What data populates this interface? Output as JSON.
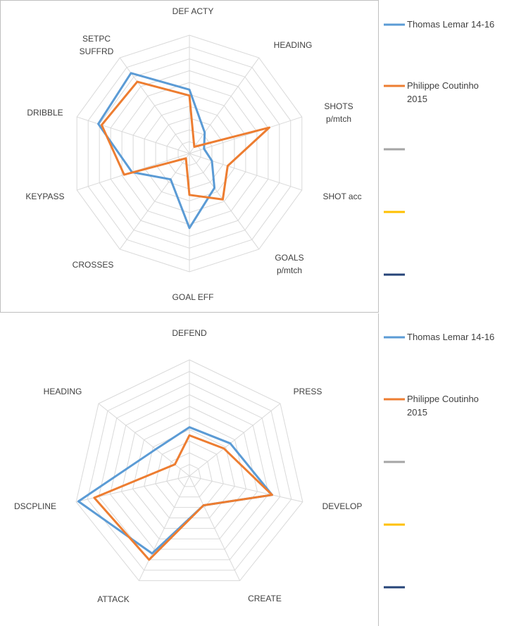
{
  "chart_data": [
    {
      "type": "radar",
      "title": "",
      "rmax": 10,
      "rings": 10,
      "axes": [
        "DEF ACTY",
        "HEADING",
        "SHOTS p/mtch",
        "SHOT acc",
        "GOALS p/mtch",
        "GOAL EFF",
        "CROSSES",
        "KEYPASS",
        "DRIBBLE",
        "SETPC SUFFRD"
      ],
      "series": [
        {
          "name": "Thomas Lemar 14-16",
          "color": "#5b9bd5",
          "values": [
            5.4,
            2.2,
            1.3,
            2.0,
            3.6,
            6.3,
            2.7,
            5.1,
            8.1,
            8.4
          ]
        },
        {
          "name": "Philippe Coutinho 2015",
          "color": "#ed7d31",
          "values": [
            4.9,
            0.7,
            7.1,
            3.4,
            4.8,
            3.5,
            0.5,
            5.8,
            7.8,
            7.5
          ]
        },
        {
          "name": "",
          "color": "#a5a5a5",
          "values": []
        },
        {
          "name": "",
          "color": "#ffc000",
          "values": []
        },
        {
          "name": "",
          "color": "#264478",
          "values": []
        }
      ]
    },
    {
      "type": "radar",
      "title": "",
      "rmax": 10,
      "rings": 10,
      "axes": [
        "DEFEND",
        "PRESS",
        "DEVELOP",
        "ATTACK",
        "CREATE",
        "DSCPLINE",
        "HEADING"
      ],
      "axis_order_note": "clockwise from top: DEFEND, PRESS, DEVELOP, CREATE, ATTACK, DSCPLINE, HEADING",
      "axes_clockwise": [
        "DEFEND",
        "PRESS",
        "DEVELOP",
        "CREATE",
        "ATTACK",
        "DSCPLINE",
        "HEADING"
      ],
      "series": [
        {
          "name": "Thomas Lemar 14-16",
          "color": "#5b9bd5",
          "values": [
            4.2,
            4.5,
            7.3,
            7.4,
            2.8,
            9.8,
            3.7
          ]
        },
        {
          "name": "Philippe Coutinho 2015",
          "color": "#ed7d31",
          "values": [
            3.5,
            3.8,
            7.3,
            8.0,
            2.8,
            8.4,
            1.6
          ]
        },
        {
          "name": "",
          "color": "#a5a5a5",
          "values": []
        },
        {
          "name": "",
          "color": "#ffc000",
          "values": []
        },
        {
          "name": "",
          "color": "#264478",
          "values": []
        }
      ]
    }
  ]
}
